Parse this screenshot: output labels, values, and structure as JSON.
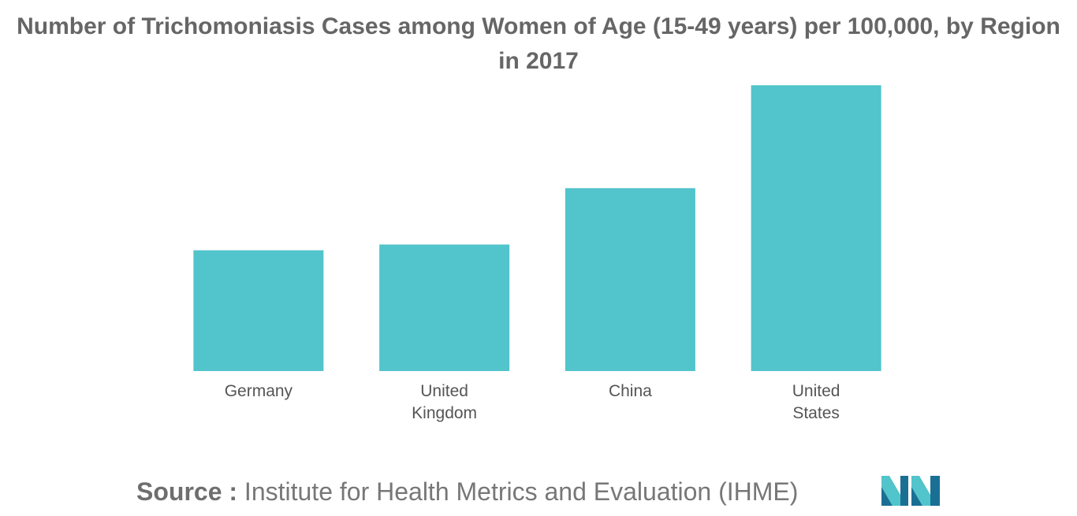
{
  "chart_data": {
    "type": "bar",
    "title": "Number of Trichomoniasis Cases among Women of Age (15-49 years) per 100,000, by Region in 2017",
    "categories": [
      [
        "Germany"
      ],
      [
        "United",
        "Kingdom"
      ],
      [
        "China"
      ],
      [
        "United",
        "States"
      ]
    ],
    "values": [
      2.1,
      2.2,
      3.18,
      4.97
    ],
    "ylim": [
      0,
      5
    ],
    "grid": false,
    "bar_color": "#52c4cb",
    "axis_label_color": "#555555"
  },
  "source": {
    "label": "Source :",
    "text": "Institute for Health Metrics and Evaluation (IHME)"
  },
  "logo": {
    "icon": "mordor-intelligence-logo",
    "colors": [
      "#1a6f94",
      "#52c4cb"
    ]
  }
}
